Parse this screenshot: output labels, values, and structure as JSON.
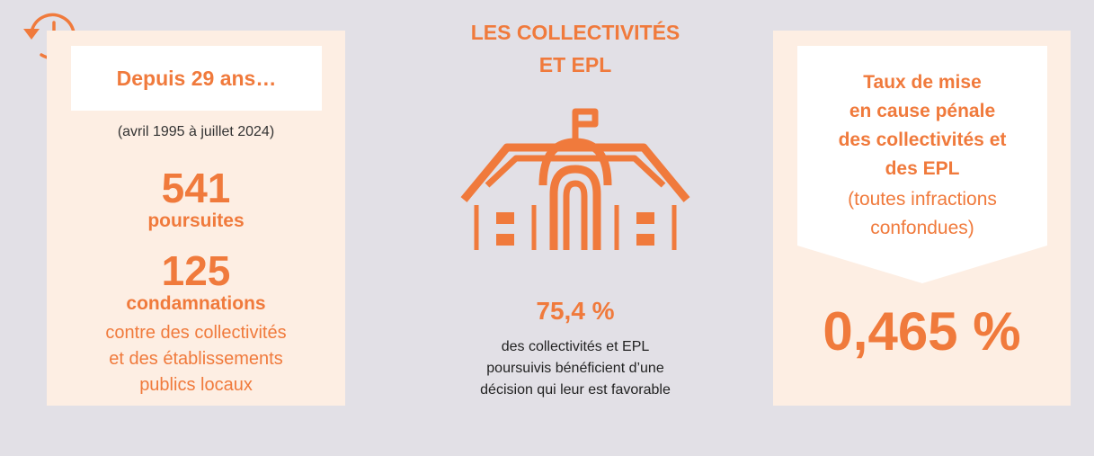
{
  "left": {
    "header": "Depuis 29 ans…",
    "period": "(avril 1995 à juillet 2024)",
    "prosecutions_count": "541",
    "prosecutions_label": "poursuites",
    "convictions_count": "125",
    "convictions_label": "condamnations",
    "description_lines": [
      "contre des collectivités",
      "et des établissements",
      "publics locaux"
    ]
  },
  "center": {
    "title_lines": [
      "LES COLLECTIVITÉS",
      "ET EPL"
    ],
    "percentage": "75,4 %",
    "description_lines": [
      "des collectivités et EPL",
      "poursuivis bénéficient d’une",
      "décision qui leur est favorable"
    ]
  },
  "right": {
    "title_lines": [
      "Taux de mise",
      "en cause pénale",
      "des collectivités et",
      "des EPL"
    ],
    "subtitle_lines": [
      "(toutes infractions",
      "confondues)"
    ],
    "rate": "0,465 %"
  },
  "colors": {
    "accent": "#f07a3c",
    "panel": "#fdeee3",
    "background": "#e2e0e6"
  },
  "icons": [
    "clock-history-icon",
    "town-hall-icon"
  ]
}
